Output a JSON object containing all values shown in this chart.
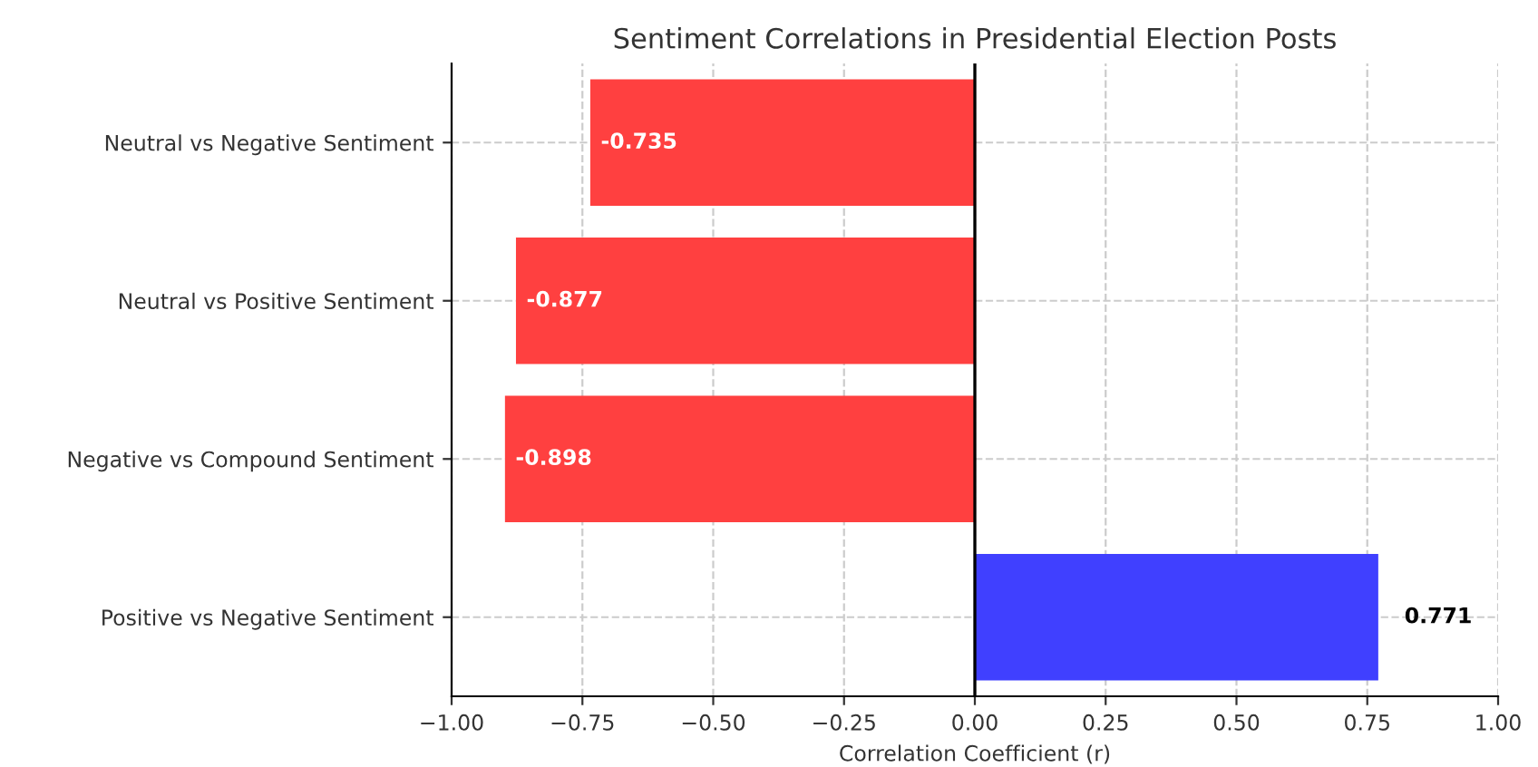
{
  "chart_data": {
    "type": "bar",
    "orientation": "horizontal",
    "title": "Sentiment Correlations in Presidential Election Posts",
    "xlabel": "Correlation Coefficient (r)",
    "categories": [
      "Neutral vs Negative Sentiment",
      "Neutral vs Positive Sentiment",
      "Negative vs Compound Sentiment",
      "Positive vs Negative Sentiment"
    ],
    "values": [
      -0.735,
      -0.877,
      -0.898,
      0.771
    ],
    "colors": [
      "#ff4040",
      "#ff4040",
      "#ff4040",
      "#4040ff"
    ],
    "xlim": [
      -1.0,
      1.0
    ],
    "xticks": [
      {
        "value": -1.0,
        "label": "−1.00"
      },
      {
        "value": -0.75,
        "label": "−0.75"
      },
      {
        "value": -0.5,
        "label": "−0.50"
      },
      {
        "value": -0.25,
        "label": "−0.25"
      },
      {
        "value": 0.0,
        "label": "0.00"
      },
      {
        "value": 0.25,
        "label": "0.25"
      },
      {
        "value": 0.5,
        "label": "0.50"
      },
      {
        "value": 0.75,
        "label": "0.75"
      },
      {
        "value": 1.0,
        "label": "1.00"
      }
    ],
    "ref_lines": [
      {
        "axis": "x",
        "value": 0,
        "color": "#000000",
        "line_style": "solid"
      }
    ],
    "data_labels": true,
    "grid": true
  }
}
